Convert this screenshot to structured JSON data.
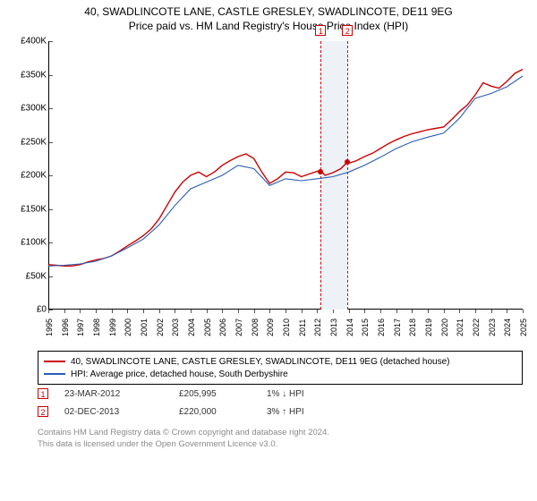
{
  "title1": "40, SWADLINCOTE LANE, CASTLE GRESLEY, SWADLINCOTE, DE11 9EG",
  "title2": "Price paid vs. HM Land Registry's House Price Index (HPI)",
  "chart": {
    "type": "line",
    "background_color": "#ffffff",
    "x": {
      "min": 1995,
      "max": 2025,
      "step": 1,
      "tick_label_fontsize": 9,
      "tick_label_rotation": -90
    },
    "y": {
      "min": 0,
      "max": 400000,
      "step": 50000,
      "tick_format": "currency_k",
      "currency": "£",
      "tick_label_fontsize": 10
    },
    "series": [
      {
        "key": "property",
        "label": "40, SWADLINCOTE LANE, CASTLE GRESLEY, SWADLINCOTE, DE11 9EG (detached house)",
        "color": "#cc0000",
        "width": 1.4,
        "points": [
          [
            1995.0,
            67000
          ],
          [
            1995.5,
            66000
          ],
          [
            1996.0,
            65000
          ],
          [
            1996.5,
            65000
          ],
          [
            1997.0,
            67000
          ],
          [
            1997.5,
            71000
          ],
          [
            1998.0,
            74000
          ],
          [
            1998.5,
            76000
          ],
          [
            1999.0,
            80000
          ],
          [
            1999.5,
            87000
          ],
          [
            2000.0,
            95000
          ],
          [
            2000.5,
            102000
          ],
          [
            2001.0,
            110000
          ],
          [
            2001.5,
            120000
          ],
          [
            2002.0,
            135000
          ],
          [
            2002.5,
            155000
          ],
          [
            2003.0,
            175000
          ],
          [
            2003.5,
            190000
          ],
          [
            2004.0,
            200000
          ],
          [
            2004.5,
            205000
          ],
          [
            2005.0,
            198000
          ],
          [
            2005.5,
            205000
          ],
          [
            2006.0,
            215000
          ],
          [
            2006.5,
            222000
          ],
          [
            2007.0,
            228000
          ],
          [
            2007.5,
            232000
          ],
          [
            2008.0,
            225000
          ],
          [
            2008.5,
            205000
          ],
          [
            2009.0,
            188000
          ],
          [
            2009.5,
            195000
          ],
          [
            2010.0,
            205000
          ],
          [
            2010.5,
            204000
          ],
          [
            2011.0,
            198000
          ],
          [
            2011.5,
            202000
          ],
          [
            2012.0,
            206000
          ],
          [
            2012.25,
            205995
          ],
          [
            2012.5,
            200000
          ],
          [
            2013.0,
            204000
          ],
          [
            2013.5,
            210000
          ],
          [
            2013.92,
            220000
          ],
          [
            2014.0,
            218000
          ],
          [
            2014.5,
            222000
          ],
          [
            2015.0,
            228000
          ],
          [
            2015.5,
            233000
          ],
          [
            2016.0,
            240000
          ],
          [
            2016.5,
            247000
          ],
          [
            2017.0,
            253000
          ],
          [
            2017.5,
            258000
          ],
          [
            2018.0,
            262000
          ],
          [
            2018.5,
            265000
          ],
          [
            2019.0,
            268000
          ],
          [
            2019.5,
            270000
          ],
          [
            2020.0,
            272000
          ],
          [
            2020.5,
            283000
          ],
          [
            2021.0,
            295000
          ],
          [
            2021.5,
            305000
          ],
          [
            2022.0,
            320000
          ],
          [
            2022.5,
            338000
          ],
          [
            2023.0,
            333000
          ],
          [
            2023.5,
            330000
          ],
          [
            2024.0,
            340000
          ],
          [
            2024.5,
            352000
          ],
          [
            2025.0,
            358000
          ]
        ]
      },
      {
        "key": "hpi",
        "label": "HPI: Average price, detached house, South Derbyshire",
        "color": "#2a5db0",
        "width": 1.1,
        "points": [
          [
            1995.0,
            65000
          ],
          [
            1996.0,
            66000
          ],
          [
            1997.0,
            68000
          ],
          [
            1998.0,
            72000
          ],
          [
            1999.0,
            80000
          ],
          [
            2000.0,
            92000
          ],
          [
            2001.0,
            105000
          ],
          [
            2002.0,
            126000
          ],
          [
            2003.0,
            155000
          ],
          [
            2004.0,
            180000
          ],
          [
            2005.0,
            190000
          ],
          [
            2006.0,
            200000
          ],
          [
            2007.0,
            215000
          ],
          [
            2008.0,
            210000
          ],
          [
            2009.0,
            185000
          ],
          [
            2010.0,
            195000
          ],
          [
            2011.0,
            192000
          ],
          [
            2012.0,
            195000
          ],
          [
            2013.0,
            198000
          ],
          [
            2014.0,
            205000
          ],
          [
            2015.0,
            215000
          ],
          [
            2016.0,
            227000
          ],
          [
            2017.0,
            240000
          ],
          [
            2018.0,
            250000
          ],
          [
            2019.0,
            257000
          ],
          [
            2020.0,
            263000
          ],
          [
            2021.0,
            285000
          ],
          [
            2022.0,
            315000
          ],
          [
            2023.0,
            322000
          ],
          [
            2024.0,
            332000
          ],
          [
            2025.0,
            348000
          ]
        ]
      }
    ],
    "markers": [
      {
        "id": "1",
        "x": 2012.23,
        "y": 205995,
        "color": "#cc0000"
      },
      {
        "id": "2",
        "x": 2013.92,
        "y": 220000,
        "color": "#cc0000"
      }
    ],
    "marker_band": {
      "from": 2012.23,
      "to": 2013.92,
      "fill": "#eef2f7"
    }
  },
  "legend": {
    "items": [
      {
        "color": "#cc0000",
        "label": "40, SWADLINCOTE LANE, CASTLE GRESLEY, SWADLINCOTE, DE11 9EG (detached house)"
      },
      {
        "color": "#2a5db0",
        "label": "HPI: Average price, detached house, South Derbyshire"
      }
    ]
  },
  "history": [
    {
      "id": "1",
      "date": "23-MAR-2012",
      "price": "£205,995",
      "pct": "1% ↓ HPI"
    },
    {
      "id": "2",
      "date": "02-DEC-2013",
      "price": "£220,000",
      "pct": "3% ↑ HPI"
    }
  ],
  "footnote": {
    "line1": "Contains HM Land Registry data © Crown copyright and database right 2024.",
    "line2": "This data is licensed under the Open Government Licence v3.0."
  }
}
